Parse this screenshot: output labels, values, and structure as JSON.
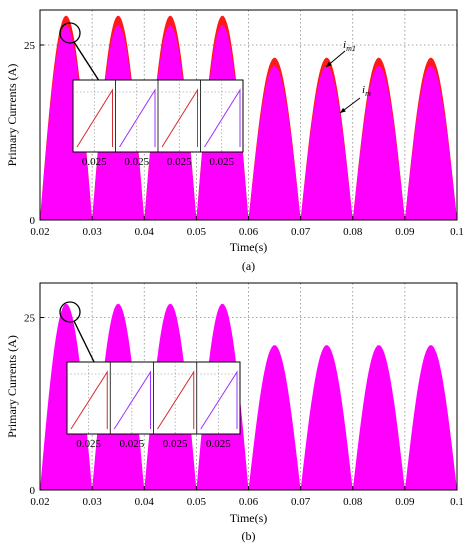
{
  "figure": {
    "background": "#ffffff"
  },
  "colors": {
    "fill": "#ff00ff",
    "peak": "#ff1a1a",
    "inset_red": "#d62a2a",
    "inset_purple": "#9b30ff",
    "grid": "#888888"
  },
  "chart_data": [
    {
      "type": "area",
      "caption": "(a)",
      "xlabel": "Time(s)",
      "ylabel": "Primary Currents (A)",
      "xlim": [
        0.02,
        0.1
      ],
      "ylim": [
        0,
        30
      ],
      "xticks": [
        "0.02",
        "0.03",
        "0.04",
        "0.05",
        "0.06",
        "0.07",
        "0.08",
        "0.09",
        "0.1"
      ],
      "yticks": [
        "0",
        "25"
      ],
      "grid": true,
      "series": [
        {
          "name": "i_m1",
          "x": [
            0.025,
            0.035,
            0.045,
            0.055,
            0.065,
            0.075,
            0.085,
            0.095
          ],
          "values": [
            29.2,
            29.2,
            29.2,
            29.2,
            23.2,
            23.2,
            23.2,
            23.2
          ]
        },
        {
          "name": "i_m",
          "x": [
            0.025,
            0.035,
            0.045,
            0.055,
            0.065,
            0.075,
            0.085,
            0.095
          ],
          "values": [
            27.8,
            27.8,
            27.8,
            27.8,
            22.0,
            22.0,
            22.0,
            22.0
          ]
        }
      ],
      "annotations": [
        {
          "text": "i",
          "sub": "m1"
        },
        {
          "text": "i",
          "sub": "m"
        }
      ],
      "inset": {
        "xtick_labels": [
          "0.025",
          "0.025",
          "0.025",
          "0.025"
        ]
      }
    },
    {
      "type": "area",
      "caption": "(b)",
      "xlabel": "Time(s)",
      "ylabel": "Primary Currents (A)",
      "xlim": [
        0.02,
        0.1
      ],
      "ylim": [
        0,
        30
      ],
      "xticks": [
        "0.02",
        "0.03",
        "0.04",
        "0.05",
        "0.06",
        "0.07",
        "0.08",
        "0.09",
        "0.1"
      ],
      "yticks": [
        "0",
        "25"
      ],
      "grid": true,
      "series": [
        {
          "x": [
            0.025,
            0.035,
            0.045,
            0.055,
            0.065,
            0.075,
            0.085,
            0.095
          ],
          "values": [
            27.0,
            27.0,
            27.0,
            27.0,
            21.0,
            21.0,
            21.0,
            21.0
          ]
        }
      ],
      "annotations": [],
      "inset": {
        "xtick_labels": [
          "0.025",
          "0.025",
          "0.025",
          "0.025"
        ]
      }
    }
  ]
}
